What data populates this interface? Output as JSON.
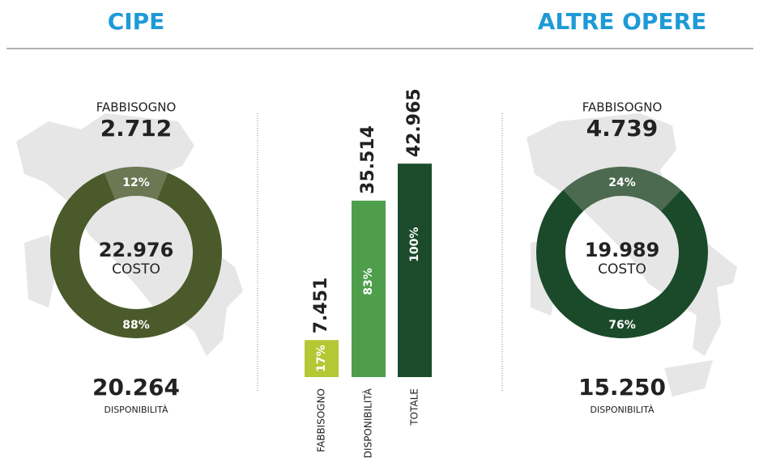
{
  "chart_data": [
    {
      "type": "donut",
      "title": "CIPE",
      "values": [
        12,
        88
      ],
      "value_labels": [
        "12%",
        "88%"
      ],
      "colors": [
        "#6c7753",
        "#4a5a2b"
      ],
      "top_label": "FABBISOGNO",
      "top_value": "2.712",
      "center_value": "22.976",
      "center_label": "COSTO",
      "bottom_value": "20.264",
      "bottom_label": "DISPONIBILITÀ"
    },
    {
      "type": "bar",
      "categories": [
        "FABBISOGNO",
        "DISPONIBILITÀ",
        "TOTALE"
      ],
      "values": [
        7451,
        35514,
        42965
      ],
      "value_labels": [
        "7.451",
        "35.514",
        "42.965"
      ],
      "percent_labels": [
        "17%",
        "83%",
        "100%"
      ],
      "colors": [
        "#b3c834",
        "#4e9e4b",
        "#1b4b2b"
      ],
      "ylim": [
        0,
        43000
      ]
    },
    {
      "type": "donut",
      "title": "ALTRE OPERE",
      "values": [
        24,
        76
      ],
      "value_labels": [
        "24%",
        "76%"
      ],
      "colors": [
        "#4b6a50",
        "#1b4a2a"
      ],
      "top_label": "FABBISOGNO",
      "top_value": "4.739",
      "center_value": "19.989",
      "center_label": "COSTO",
      "bottom_value": "15.250",
      "bottom_label": "DISPONIBILITÀ"
    }
  ]
}
